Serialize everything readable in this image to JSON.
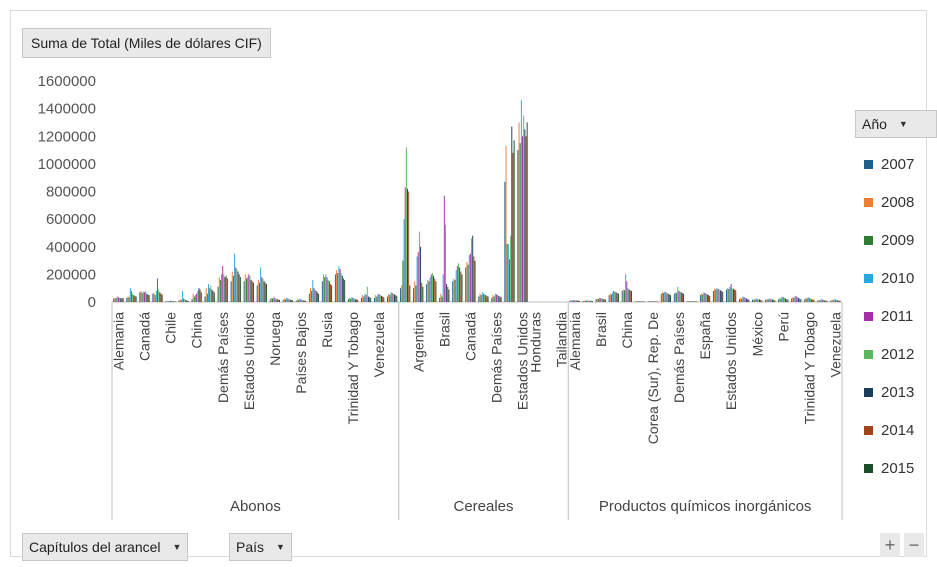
{
  "value_field": {
    "label": "Suma de Total (Miles de dólares CIF)"
  },
  "legend": {
    "title": "Año",
    "items": [
      {
        "name": "2007",
        "color": "#1f5f8b"
      },
      {
        "name": "2008",
        "color": "#ed7d31"
      },
      {
        "name": "2009",
        "color": "#2e7d32"
      },
      {
        "name": "2010",
        "color": "#29a8e0"
      },
      {
        "name": "2011",
        "color": "#a62ea8"
      },
      {
        "name": "2012",
        "color": "#5cb85c"
      },
      {
        "name": "2013",
        "color": "#1a3d5c"
      },
      {
        "name": "2014",
        "color": "#a0441a"
      },
      {
        "name": "2015",
        "color": "#1b4d2a"
      }
    ]
  },
  "filters": {
    "capitulos_label": "Capítulos del arancel",
    "pais_label": "País"
  },
  "zoom": {
    "plus": "+",
    "minus": "−"
  },
  "chart_data": {
    "type": "bar",
    "ylim": [
      0,
      1600000
    ],
    "yticks": [
      0,
      200000,
      400000,
      600000,
      800000,
      1000000,
      1200000,
      1400000,
      1600000
    ],
    "ytick_labels": [
      "0",
      "200000",
      "400000",
      "600000",
      "800000",
      "1000000",
      "1200000",
      "1400000",
      "1600000"
    ],
    "series_names": [
      "2007",
      "2008",
      "2009",
      "2010",
      "2011",
      "2012",
      "2013",
      "2014",
      "2015"
    ],
    "groups": [
      {
        "name": "Abonos",
        "categories": [
          {
            "label": "Alemania",
            "values": [
              25000,
              30000,
              28000,
              40000,
              35000,
              30000,
              28000,
              25000,
              30000
            ]
          },
          {
            "label": "",
            "values": [
              30000,
              40000,
              35000,
              100000,
              80000,
              60000,
              50000,
              45000,
              40000
            ]
          },
          {
            "label": "Canadá",
            "values": [
              70000,
              80000,
              65000,
              75000,
              70000,
              80000,
              60000,
              55000,
              50000
            ]
          },
          {
            "label": "",
            "values": [
              60000,
              65000,
              50000,
              80000,
              170000,
              90000,
              70000,
              60000,
              55000
            ]
          },
          {
            "label": "Chile",
            "values": [
              5000,
              8000,
              6000,
              7000,
              10000,
              8000,
              6000,
              5000,
              5000
            ]
          },
          {
            "label": "",
            "values": [
              10000,
              20000,
              15000,
              80000,
              25000,
              20000,
              15000,
              10000,
              8000
            ]
          },
          {
            "label": "China",
            "values": [
              20000,
              60000,
              40000,
              50000,
              60000,
              80000,
              100000,
              90000,
              70000
            ]
          },
          {
            "label": "",
            "values": [
              40000,
              100000,
              60000,
              130000,
              100000,
              120000,
              90000,
              80000,
              70000
            ]
          },
          {
            "label": "Demás Países",
            "values": [
              110000,
              180000,
              160000,
              200000,
              260000,
              200000,
              180000,
              190000,
              170000
            ]
          },
          {
            "label": "",
            "values": [
              150000,
              220000,
              190000,
              350000,
              250000,
              240000,
              220000,
              200000,
              180000
            ]
          },
          {
            "label": "Estados Unidos",
            "values": [
              150000,
              200000,
              170000,
              180000,
              200000,
              190000,
              160000,
              150000,
              140000
            ]
          },
          {
            "label": "",
            "values": [
              120000,
              160000,
              140000,
              250000,
              180000,
              170000,
              150000,
              140000,
              130000
            ]
          },
          {
            "label": "Noruega",
            "values": [
              20000,
              30000,
              25000,
              35000,
              30000,
              25000,
              20000,
              18000,
              15000
            ]
          },
          {
            "label": "",
            "values": [
              15000,
              25000,
              20000,
              30000,
              25000,
              20000,
              18000,
              15000,
              12000
            ]
          },
          {
            "label": "Países Bajos",
            "values": [
              10000,
              20000,
              15000,
              25000,
              20000,
              15000,
              12000,
              10000,
              8000
            ]
          },
          {
            "label": "",
            "values": [
              60000,
              100000,
              80000,
              160000,
              100000,
              90000,
              80000,
              70000,
              60000
            ]
          },
          {
            "label": "Rusia",
            "values": [
              150000,
              200000,
              180000,
              200000,
              180000,
              160000,
              150000,
              130000,
              120000
            ]
          },
          {
            "label": "",
            "values": [
              200000,
              230000,
              210000,
              260000,
              240000,
              210000,
              190000,
              170000,
              160000
            ]
          },
          {
            "label": "Trinidad Y Tobago",
            "values": [
              20000,
              30000,
              25000,
              35000,
              30000,
              25000,
              20000,
              18000,
              15000
            ]
          },
          {
            "label": "",
            "values": [
              30000,
              50000,
              40000,
              60000,
              50000,
              110000,
              40000,
              35000,
              30000
            ]
          },
          {
            "label": "Venezuela",
            "values": [
              30000,
              50000,
              40000,
              60000,
              55000,
              50000,
              45000,
              40000,
              35000
            ]
          },
          {
            "label": "",
            "values": [
              40000,
              60000,
              50000,
              70000,
              65000,
              60000,
              55000,
              50000,
              45000
            ]
          }
        ]
      },
      {
        "name": "Cereales",
        "categories": [
          {
            "label": "",
            "values": [
              100000,
              120000,
              300000,
              600000,
              830000,
              1120000,
              820000,
              800000,
              120000
            ]
          },
          {
            "label": "Argentina",
            "values": [
              100000,
              150000,
              120000,
              330000,
              360000,
              510000,
              400000,
              140000,
              110000
            ]
          },
          {
            "label": "",
            "values": [
              130000,
              160000,
              150000,
              180000,
              200000,
              210000,
              190000,
              170000,
              150000
            ]
          },
          {
            "label": "Brasil",
            "values": [
              30000,
              60000,
              40000,
              200000,
              770000,
              560000,
              130000,
              110000,
              90000
            ]
          },
          {
            "label": "",
            "values": [
              150000,
              170000,
              160000,
              230000,
              260000,
              280000,
              250000,
              220000,
              200000
            ]
          },
          {
            "label": "Canadá",
            "values": [
              250000,
              290000,
              270000,
              340000,
              350000,
              460000,
              480000,
              330000,
              300000
            ]
          },
          {
            "label": "",
            "values": [
              40000,
              60000,
              50000,
              70000,
              60000,
              55000,
              50000,
              45000,
              40000
            ]
          },
          {
            "label": "Demás Países",
            "values": [
              30000,
              50000,
              40000,
              60000,
              55000,
              50000,
              45000,
              40000,
              35000
            ]
          },
          {
            "label": "",
            "values": [
              870000,
              1130000,
              420000,
              420000,
              310000,
              480000,
              1270000,
              1080000,
              1170000
            ]
          },
          {
            "label": "Estados Unidos",
            "values": [
              1100000,
              1300000,
              1150000,
              1460000,
              1200000,
              1350000,
              1250000,
              1200000,
              1300000
            ]
          },
          {
            "label": "Honduras",
            "values": [
              0,
              0,
              0,
              0,
              0,
              0,
              0,
              0,
              0
            ]
          },
          {
            "label": "",
            "values": [
              0,
              0,
              0,
              0,
              0,
              0,
              0,
              0,
              0
            ]
          },
          {
            "label": "Tailandia",
            "values": [
              0,
              0,
              0,
              0,
              0,
              0,
              0,
              0,
              0
            ]
          }
        ]
      },
      {
        "name": "Productos químicos inorgánicos",
        "categories": [
          {
            "label": "Alemania",
            "values": [
              10000,
              12000,
              11000,
              14000,
              13000,
              12000,
              11000,
              10000,
              9000
            ]
          },
          {
            "label": "",
            "values": [
              8000,
              10000,
              9000,
              12000,
              11000,
              10000,
              9000,
              8000,
              7000
            ]
          },
          {
            "label": "Brasil",
            "values": [
              20000,
              25000,
              22000,
              30000,
              28000,
              25000,
              22000,
              20000,
              18000
            ]
          },
          {
            "label": "",
            "values": [
              50000,
              60000,
              55000,
              70000,
              80000,
              75000,
              70000,
              65000,
              60000
            ]
          },
          {
            "label": "China",
            "values": [
              80000,
              90000,
              85000,
              200000,
              150000,
              100000,
              90000,
              85000,
              80000
            ]
          },
          {
            "label": "",
            "values": [
              5000,
              6000,
              5000,
              7000,
              6000,
              5000,
              5000,
              4000,
              4000
            ]
          },
          {
            "label": "Corea (Sur), Rep. De",
            "values": [
              5000,
              6000,
              5000,
              7000,
              6000,
              5000,
              5000,
              4000,
              4000
            ]
          },
          {
            "label": "",
            "values": [
              60000,
              70000,
              65000,
              75000,
              70000,
              65000,
              60000,
              55000,
              50000
            ]
          },
          {
            "label": "Demás Países",
            "values": [
              60000,
              70000,
              65000,
              110000,
              80000,
              75000,
              70000,
              65000,
              60000
            ]
          },
          {
            "label": "",
            "values": [
              5000,
              6000,
              5000,
              7000,
              6000,
              5000,
              5000,
              4000,
              4000
            ]
          },
          {
            "label": "España",
            "values": [
              50000,
              60000,
              55000,
              70000,
              65000,
              60000,
              55000,
              50000,
              45000
            ]
          },
          {
            "label": "",
            "values": [
              80000,
              95000,
              90000,
              100000,
              95000,
              90000,
              85000,
              80000,
              75000
            ]
          },
          {
            "label": "Estados Unidos",
            "values": [
              90000,
              100000,
              95000,
              110000,
              130000,
              100000,
              95000,
              90000,
              85000
            ]
          },
          {
            "label": "",
            "values": [
              20000,
              30000,
              25000,
              40000,
              35000,
              30000,
              25000,
              20000,
              18000
            ]
          },
          {
            "label": "México",
            "values": [
              15000,
              20000,
              18000,
              25000,
              22000,
              20000,
              18000,
              15000,
              12000
            ]
          },
          {
            "label": "",
            "values": [
              15000,
              20000,
              18000,
              25000,
              22000,
              20000,
              18000,
              15000,
              12000
            ]
          },
          {
            "label": "Perú",
            "values": [
              20000,
              30000,
              25000,
              40000,
              35000,
              30000,
              25000,
              20000,
              18000
            ]
          },
          {
            "label": "",
            "values": [
              25000,
              35000,
              30000,
              45000,
              40000,
              35000,
              30000,
              25000,
              20000
            ]
          },
          {
            "label": "Trinidad Y Tobago",
            "values": [
              20000,
              30000,
              25000,
              35000,
              30000,
              25000,
              20000,
              18000,
              15000
            ]
          },
          {
            "label": "",
            "values": [
              10000,
              15000,
              12000,
              20000,
              18000,
              15000,
              12000,
              10000,
              8000
            ]
          },
          {
            "label": "Venezuela",
            "values": [
              10000,
              15000,
              12000,
              20000,
              18000,
              15000,
              12000,
              10000,
              8000
            ]
          }
        ]
      }
    ]
  }
}
